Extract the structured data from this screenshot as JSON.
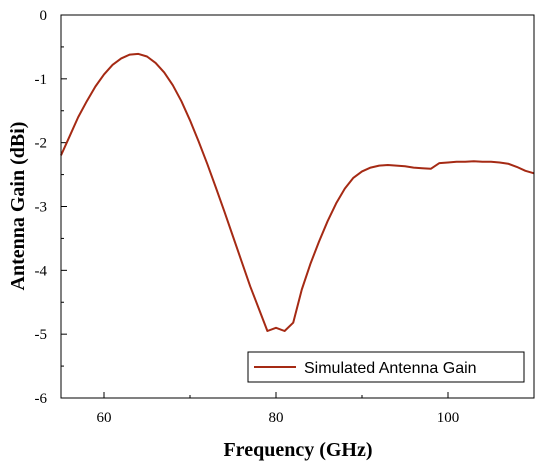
{
  "chart_data": {
    "type": "line",
    "title": "",
    "xlabel": "Frequency (GHz)",
    "ylabel": "Antenna Gain (dBi)",
    "xlim": [
      55,
      110
    ],
    "ylim": [
      -6,
      0
    ],
    "xticks": [
      60,
      80,
      100
    ],
    "xtick_labels": [
      "60",
      "80",
      "100"
    ],
    "yticks": [
      0,
      -1,
      -2,
      -3,
      -4,
      -5,
      -6
    ],
    "ytick_labels": [
      "0",
      "-1",
      "-2",
      "-3",
      "-4",
      "-5",
      "-6"
    ],
    "grid": false,
    "legend_position": "bottom-right",
    "series": [
      {
        "name": "Simulated Antenna Gain",
        "color": "#a52a14",
        "x": [
          55,
          56,
          57,
          58,
          59,
          60,
          61,
          62,
          63,
          64,
          65,
          66,
          67,
          68,
          69,
          70,
          71,
          72,
          73,
          74,
          75,
          76,
          77,
          78,
          79,
          80,
          81,
          82,
          83,
          84,
          85,
          86,
          87,
          88,
          89,
          90,
          91,
          92,
          93,
          94,
          95,
          96,
          97,
          98,
          99,
          100,
          101,
          102,
          103,
          104,
          105,
          106,
          107,
          108,
          109,
          110
        ],
        "y": [
          -2.2,
          -1.9,
          -1.6,
          -1.35,
          -1.12,
          -0.93,
          -0.78,
          -0.68,
          -0.62,
          -0.61,
          -0.65,
          -0.75,
          -0.9,
          -1.1,
          -1.35,
          -1.65,
          -1.98,
          -2.33,
          -2.7,
          -3.08,
          -3.47,
          -3.86,
          -4.25,
          -4.6,
          -4.95,
          -4.9,
          -4.95,
          -4.82,
          -4.3,
          -3.9,
          -3.55,
          -3.23,
          -2.95,
          -2.72,
          -2.55,
          -2.45,
          -2.39,
          -2.36,
          -2.35,
          -2.36,
          -2.37,
          -2.39,
          -2.4,
          -2.41,
          -2.32,
          -2.31,
          -2.3,
          -2.3,
          -2.29,
          -2.3,
          -2.3,
          -2.31,
          -2.33,
          -2.38,
          -2.44,
          -2.48
        ]
      }
    ]
  }
}
